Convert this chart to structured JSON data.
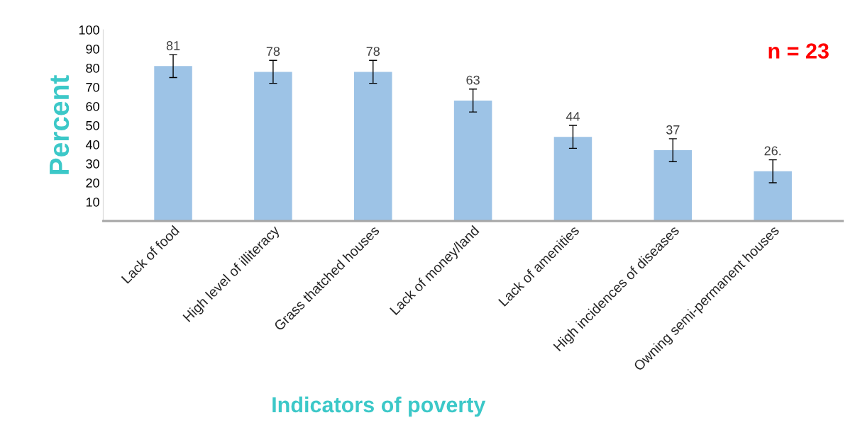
{
  "chart_data": {
    "type": "bar",
    "xlabel": "Indicators of poverty",
    "ylabel": "Percent",
    "categories": [
      "Lack of food",
      "High level of illiteracy",
      "Grass thatched houses",
      "Lack of money/land",
      "Lack of amenities",
      "High incidences of diseases",
      "Owning semi-permanent houses"
    ],
    "values": [
      81,
      78,
      78,
      63,
      44,
      37,
      26
    ],
    "value_labels": [
      "81",
      "78",
      "78",
      "63",
      "44",
      "37",
      "26."
    ],
    "errors": [
      6,
      6,
      6,
      6,
      6,
      6,
      6
    ],
    "color": "#9dc3e6",
    "ylim": [
      0,
      100
    ],
    "yticks": [
      10,
      20,
      30,
      40,
      50,
      60,
      70,
      80,
      90,
      100
    ],
    "grid": false,
    "annotations": [
      "n = 23"
    ]
  }
}
